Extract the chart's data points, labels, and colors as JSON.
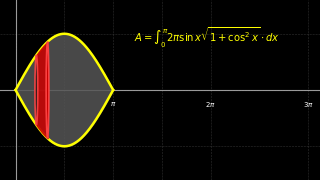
{
  "bg_color": "#000000",
  "grid_color": "#444444",
  "curve_color": "#ffff00",
  "fill_color": "#555555",
  "strip_fill_color": "#cc0000",
  "strip_edge_color": "#ff4444",
  "axis_color": "#aaaaaa",
  "formula_color": "#ffff00",
  "x_min": -0.5,
  "x_max": 9.8,
  "y_min": -1.6,
  "y_max": 1.6,
  "strip_x_center": 0.85,
  "strip_x_half_width": 0.18
}
